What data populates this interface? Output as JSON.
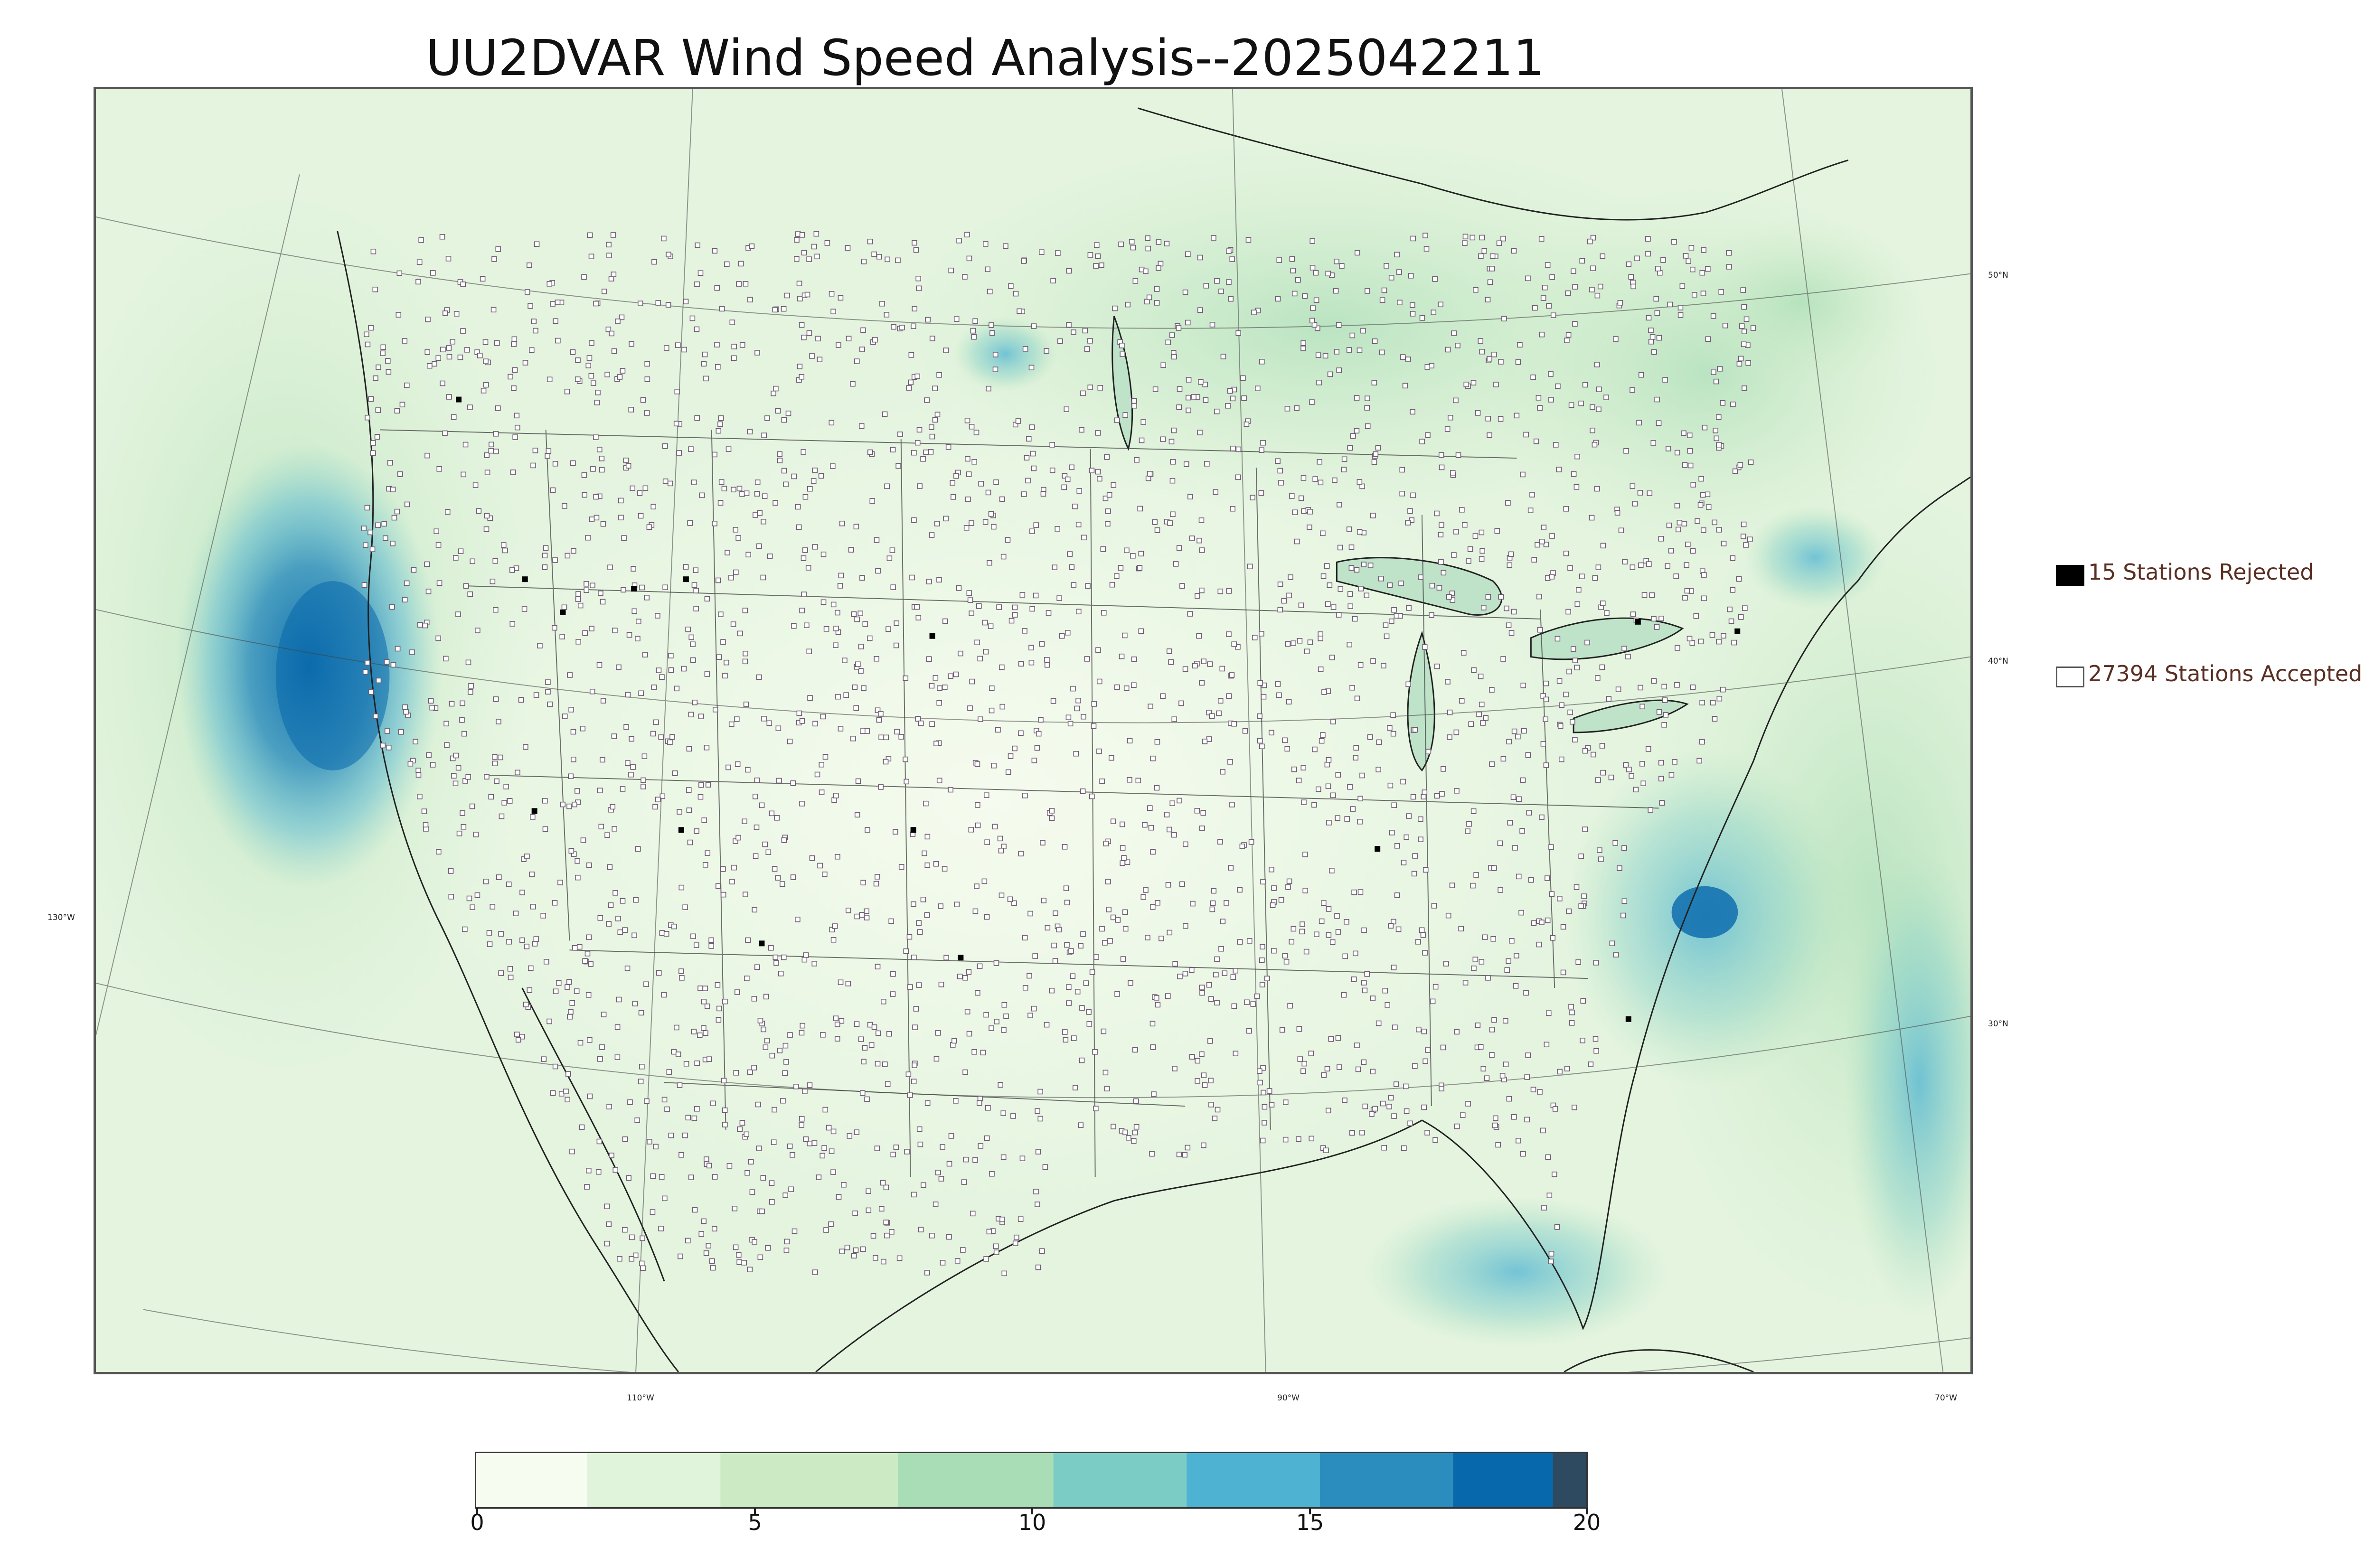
{
  "title": "UU2DVAR Wind Speed Analysis--2025042211",
  "legend": {
    "rejected": {
      "label": "15 Stations Rejected",
      "color": "#000000"
    },
    "accepted": {
      "label": "27394 Stations Accepted",
      "color": "#ffffff"
    }
  },
  "lat_labels": [
    "50°N",
    "40°N",
    "30°N"
  ],
  "lon_labels": [
    "130°W",
    "110°W",
    "90°W",
    "70°W"
  ],
  "colorbar": {
    "ticks": [
      "0",
      "5",
      "10",
      "15",
      "20"
    ],
    "min": 0,
    "max": 20,
    "colors": [
      "#f7fcf0",
      "#e0f3db",
      "#ccebc5",
      "#a8ddb5",
      "#7bccc4",
      "#4eb3d3",
      "#2b8cbe",
      "#0868ac",
      "#2d4a60"
    ]
  },
  "colors": {
    "map_background": "#eef8ea",
    "state_lines": "#333333",
    "station_marker": "#6b5a6e"
  }
}
